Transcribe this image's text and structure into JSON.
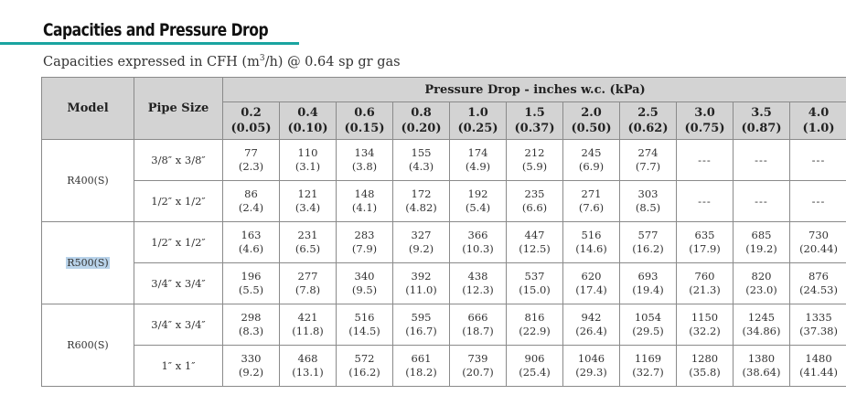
{
  "title": "Capacities and Pressure Drop",
  "subtitle_prefix": "Capacities expressed in CFH (m",
  "subtitle_sup": "3",
  "subtitle_suffix": "/h) @ 0.64 sp gr gas",
  "table": {
    "model_header": "Model",
    "pipe_header": "Pipe Size",
    "pressure_header": "Pressure Drop - inches w.c. (kPa)",
    "pressure_columns": [
      {
        "inches": "0.2",
        "kpa": "(0.05)"
      },
      {
        "inches": "0.4",
        "kpa": "(0.10)"
      },
      {
        "inches": "0.6",
        "kpa": "(0.15)"
      },
      {
        "inches": "0.8",
        "kpa": "(0.20)"
      },
      {
        "inches": "1.0",
        "kpa": "(0.25)"
      },
      {
        "inches": "1.5",
        "kpa": "(0.37)"
      },
      {
        "inches": "2.0",
        "kpa": "(0.50)"
      },
      {
        "inches": "2.5",
        "kpa": "(0.62)"
      },
      {
        "inches": "3.0",
        "kpa": "(0.75)"
      },
      {
        "inches": "3.5",
        "kpa": "(0.87)"
      },
      {
        "inches": "4.0",
        "kpa": "(1.0)"
      }
    ],
    "models": [
      {
        "model": "R400(S)",
        "highlighted": false,
        "rows": [
          {
            "pipe": "3/8″ x 3/8″",
            "cells": [
              [
                "77",
                "(2.3)"
              ],
              [
                "110",
                "(3.1)"
              ],
              [
                "134",
                "(3.8)"
              ],
              [
                "155",
                "(4.3)"
              ],
              [
                "174",
                "(4.9)"
              ],
              [
                "212",
                "(5.9)"
              ],
              [
                "245",
                "(6.9)"
              ],
              [
                "274",
                "(7.7)"
              ],
              [
                "---",
                ""
              ],
              [
                "---",
                ""
              ],
              [
                "---",
                ""
              ]
            ]
          },
          {
            "pipe": "1/2″ x 1/2″",
            "cells": [
              [
                "86",
                "(2.4)"
              ],
              [
                "121",
                "(3.4)"
              ],
              [
                "148",
                "(4.1)"
              ],
              [
                "172",
                "(4.82)"
              ],
              [
                "192",
                "(5.4)"
              ],
              [
                "235",
                "(6.6)"
              ],
              [
                "271",
                "(7.6)"
              ],
              [
                "303",
                "(8.5)"
              ],
              [
                "---",
                ""
              ],
              [
                "---",
                ""
              ],
              [
                "---",
                ""
              ]
            ]
          }
        ]
      },
      {
        "model": "R500(S)",
        "highlighted": true,
        "rows": [
          {
            "pipe": "1/2″ x 1/2″",
            "cells": [
              [
                "163",
                "(4.6)"
              ],
              [
                "231",
                "(6.5)"
              ],
              [
                "283",
                "(7.9)"
              ],
              [
                "327",
                "(9.2)"
              ],
              [
                "366",
                "(10.3)"
              ],
              [
                "447",
                "(12.5)"
              ],
              [
                "516",
                "(14.6)"
              ],
              [
                "577",
                "(16.2)"
              ],
              [
                "635",
                "(17.9)"
              ],
              [
                "685",
                "(19.2)"
              ],
              [
                "730",
                "(20.44)"
              ]
            ]
          },
          {
            "pipe": "3/4″ x 3/4″",
            "cells": [
              [
                "196",
                "(5.5)"
              ],
              [
                "277",
                "(7.8)"
              ],
              [
                "340",
                "(9.5)"
              ],
              [
                "392",
                "(11.0)"
              ],
              [
                "438",
                "(12.3)"
              ],
              [
                "537",
                "(15.0)"
              ],
              [
                "620",
                "(17.4)"
              ],
              [
                "693",
                "(19.4)"
              ],
              [
                "760",
                "(21.3)"
              ],
              [
                "820",
                "(23.0)"
              ],
              [
                "876",
                "(24.53)"
              ]
            ]
          }
        ]
      },
      {
        "model": "R600(S)",
        "highlighted": false,
        "rows": [
          {
            "pipe": "3/4″ x 3/4″",
            "cells": [
              [
                "298",
                "(8.3)"
              ],
              [
                "421",
                "(11.8)"
              ],
              [
                "516",
                "(14.5)"
              ],
              [
                "595",
                "(16.7)"
              ],
              [
                "666",
                "(18.7)"
              ],
              [
                "816",
                "(22.9)"
              ],
              [
                "942",
                "(26.4)"
              ],
              [
                "1054",
                "(29.5)"
              ],
              [
                "1150",
                "(32.2)"
              ],
              [
                "1245",
                "(34.86)"
              ],
              [
                "1335",
                "(37.38)"
              ]
            ]
          },
          {
            "pipe": "1″ x 1″",
            "cells": [
              [
                "330",
                "(9.2)"
              ],
              [
                "468",
                "(13.1)"
              ],
              [
                "572",
                "(16.2)"
              ],
              [
                "661",
                "(18.2)"
              ],
              [
                "739",
                "(20.7)"
              ],
              [
                "906",
                "(25.4)"
              ],
              [
                "1046",
                "(29.3)"
              ],
              [
                "1169",
                "(32.7)"
              ],
              [
                "1280",
                "(35.8)"
              ],
              [
                "1380",
                "(38.64)"
              ],
              [
                "1480",
                "(41.44)"
              ]
            ]
          }
        ]
      }
    ]
  }
}
